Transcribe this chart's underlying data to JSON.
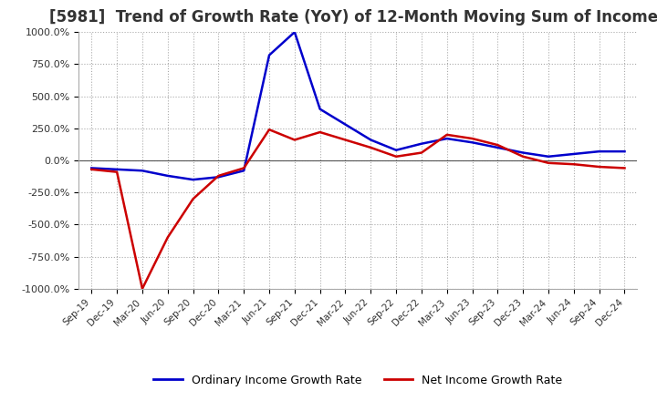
{
  "title": "[5981]  Trend of Growth Rate (YoY) of 12-Month Moving Sum of Incomes",
  "title_fontsize": 12,
  "legend_labels": [
    "Ordinary Income Growth Rate",
    "Net Income Growth Rate"
  ],
  "legend_colors": [
    "#0000cc",
    "#cc0000"
  ],
  "ylim": [
    -1000,
    1000
  ],
  "yticks": [
    -1000,
    -750,
    -500,
    -250,
    0,
    250,
    500,
    750,
    1000
  ],
  "ytick_labels": [
    "-1000.0%",
    "-750.0%",
    "-500.0%",
    "-250.0%",
    "0.0%",
    "250.0%",
    "500.0%",
    "750.0%",
    "1000.0%"
  ],
  "xtick_labels": [
    "Sep-19",
    "Dec-19",
    "Mar-20",
    "Jun-20",
    "Sep-20",
    "Dec-20",
    "Mar-21",
    "Jun-21",
    "Sep-21",
    "Dec-21",
    "Mar-22",
    "Jun-22",
    "Sep-22",
    "Dec-22",
    "Mar-23",
    "Jun-23",
    "Sep-23",
    "Dec-23",
    "Mar-24",
    "Jun-24",
    "Sep-24",
    "Dec-24"
  ],
  "ordinary_income": [
    -60,
    -70,
    -80,
    -120,
    -150,
    -130,
    -80,
    820,
    1000,
    400,
    280,
    160,
    80,
    130,
    170,
    140,
    100,
    60,
    30,
    50,
    70,
    70
  ],
  "net_income": [
    -70,
    -90,
    -1000,
    -600,
    -300,
    -120,
    -60,
    240,
    160,
    220,
    160,
    100,
    30,
    60,
    200,
    170,
    120,
    30,
    -20,
    -30,
    -50,
    -60
  ],
  "background_color": "#ffffff",
  "grid_color": "#aaaaaa",
  "line_width": 1.8,
  "figsize": [
    7.2,
    4.4
  ],
  "dpi": 100
}
